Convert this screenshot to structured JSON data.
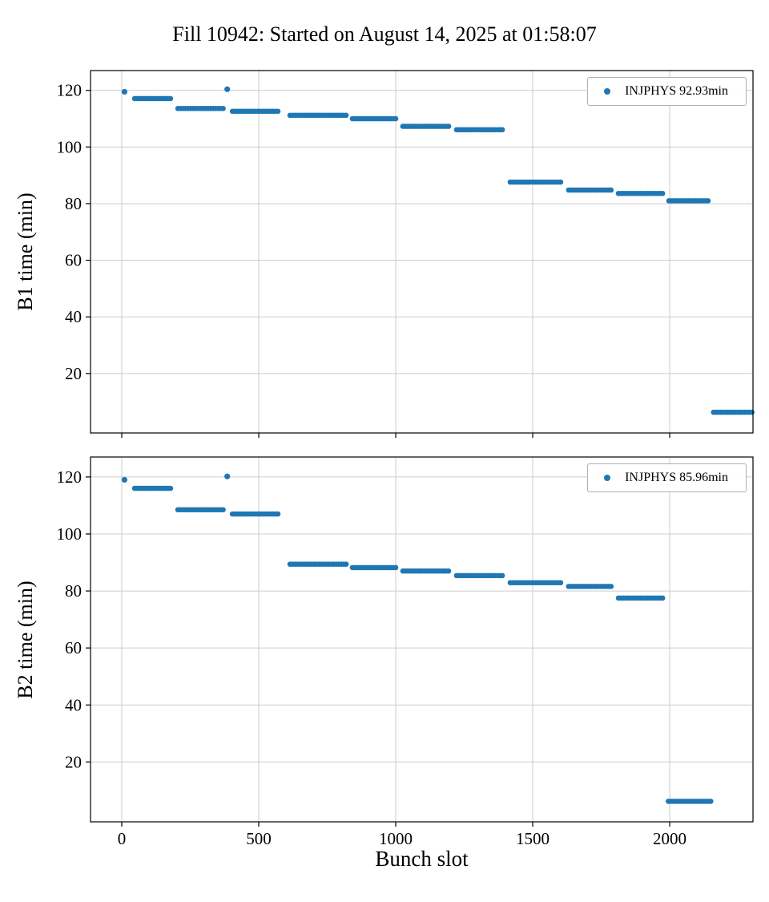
{
  "title": "Fill 10942: Started on August 14, 2025 at 01:58:07",
  "xlabel": "Bunch slot",
  "colors": {
    "marker": "#1f77b4",
    "grid": "#cccccc",
    "spine": "#000000",
    "text": "#000000",
    "legend_border": "#b0b0b0"
  },
  "chart_data": [
    {
      "type": "scatter",
      "ylabel": "B1 time (min)",
      "legend": "INJPHYS 92.93min",
      "series_name": "INJPHYS",
      "mean_minutes": 92.93,
      "xlim": [
        -114,
        2304
      ],
      "ylim": [
        -1,
        127
      ],
      "xticks": [
        0,
        500,
        1000,
        1500,
        2000
      ],
      "yticks": [
        20,
        40,
        60,
        80,
        100,
        120
      ],
      "grid": true,
      "legend_position": "upper right",
      "segments": [
        {
          "x0": 10,
          "x1": 10,
          "y": 119.5
        },
        {
          "x0": 47,
          "x1": 178,
          "y": 117.1
        },
        {
          "x0": 205,
          "x1": 370,
          "y": 113.6
        },
        {
          "x0": 385,
          "x1": 385,
          "y": 120.4
        },
        {
          "x0": 404,
          "x1": 570,
          "y": 112.6
        },
        {
          "x0": 614,
          "x1": 819,
          "y": 111.2
        },
        {
          "x0": 842,
          "x1": 1000,
          "y": 110.0
        },
        {
          "x0": 1026,
          "x1": 1193,
          "y": 107.3
        },
        {
          "x0": 1222,
          "x1": 1389,
          "y": 106.1
        },
        {
          "x0": 1418,
          "x1": 1602,
          "y": 87.6
        },
        {
          "x0": 1631,
          "x1": 1786,
          "y": 84.8
        },
        {
          "x0": 1813,
          "x1": 1974,
          "y": 83.6
        },
        {
          "x0": 1997,
          "x1": 2140,
          "y": 81.0
        },
        {
          "x0": 2160,
          "x1": 2300,
          "y": 6.3
        }
      ]
    },
    {
      "type": "scatter",
      "ylabel": "B2 time (min)",
      "legend": "INJPHYS 85.96min",
      "series_name": "INJPHYS",
      "mean_minutes": 85.96,
      "xlim": [
        -114,
        2304
      ],
      "ylim": [
        -1,
        127
      ],
      "xticks": [
        0,
        500,
        1000,
        1500,
        2000
      ],
      "yticks": [
        20,
        40,
        60,
        80,
        100,
        120
      ],
      "grid": true,
      "legend_position": "upper right",
      "segments": [
        {
          "x0": 10,
          "x1": 10,
          "y": 119.0
        },
        {
          "x0": 47,
          "x1": 178,
          "y": 116.0
        },
        {
          "x0": 205,
          "x1": 370,
          "y": 108.5
        },
        {
          "x0": 385,
          "x1": 385,
          "y": 120.2
        },
        {
          "x0": 404,
          "x1": 570,
          "y": 107.0
        },
        {
          "x0": 614,
          "x1": 819,
          "y": 89.4
        },
        {
          "x0": 842,
          "x1": 1000,
          "y": 88.2
        },
        {
          "x0": 1026,
          "x1": 1193,
          "y": 87.0
        },
        {
          "x0": 1222,
          "x1": 1389,
          "y": 85.4
        },
        {
          "x0": 1418,
          "x1": 1602,
          "y": 82.9
        },
        {
          "x0": 1631,
          "x1": 1786,
          "y": 81.6
        },
        {
          "x0": 1813,
          "x1": 1974,
          "y": 77.5
        },
        {
          "x0": 1995,
          "x1": 2150,
          "y": 6.2
        }
      ]
    }
  ]
}
